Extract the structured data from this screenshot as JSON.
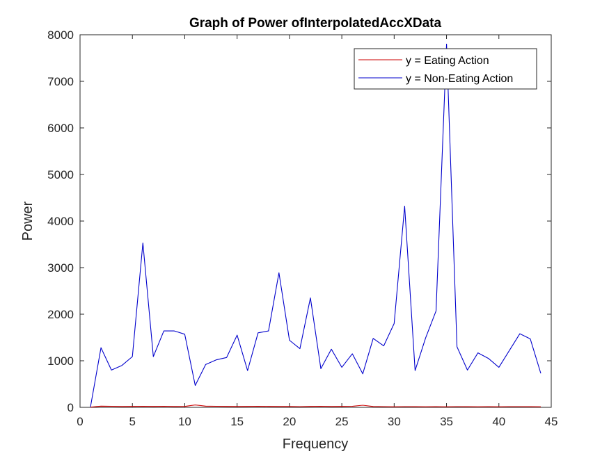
{
  "chart_data": {
    "type": "line",
    "title": "Graph of Power ofInterpolatedAccXData",
    "xlabel": "Frequency",
    "ylabel": "Power",
    "xlim": [
      0,
      45
    ],
    "ylim": [
      0,
      8000
    ],
    "xticks": [
      0,
      5,
      10,
      15,
      20,
      25,
      30,
      35,
      40,
      45
    ],
    "yticks": [
      0,
      1000,
      2000,
      3000,
      4000,
      5000,
      6000,
      7000,
      8000
    ],
    "grid": false,
    "legend": "top-right",
    "x": [
      1,
      2,
      3,
      4,
      5,
      6,
      7,
      8,
      9,
      10,
      11,
      12,
      13,
      14,
      15,
      16,
      17,
      18,
      19,
      20,
      21,
      22,
      23,
      24,
      25,
      26,
      27,
      28,
      29,
      30,
      31,
      32,
      33,
      34,
      35,
      36,
      37,
      38,
      39,
      40,
      41,
      42,
      43,
      44
    ],
    "series": [
      {
        "name": "y = Eating Action",
        "color": "#cc0000",
        "values": [
          5,
          25,
          22,
          18,
          20,
          22,
          20,
          22,
          18,
          20,
          50,
          25,
          22,
          20,
          18,
          20,
          22,
          20,
          18,
          18,
          15,
          20,
          22,
          18,
          20,
          22,
          45,
          18,
          15,
          12,
          15,
          14,
          12,
          14,
          12,
          15,
          14,
          12,
          14,
          12,
          15,
          15,
          14,
          12
        ]
      },
      {
        "name": "y = Non-Eating Action",
        "color": "#0000cc",
        "values": [
          10,
          1280,
          800,
          900,
          1090,
          3530,
          1090,
          1640,
          1640,
          1570,
          470,
          920,
          1020,
          1070,
          1550,
          790,
          1600,
          1640,
          2890,
          1440,
          1260,
          2350,
          830,
          1250,
          860,
          1150,
          720,
          1480,
          1320,
          1800,
          4320,
          790,
          1490,
          2070,
          7800,
          1300,
          800,
          1170,
          1050,
          860,
          1220,
          1580,
          1470,
          730
        ]
      }
    ]
  }
}
